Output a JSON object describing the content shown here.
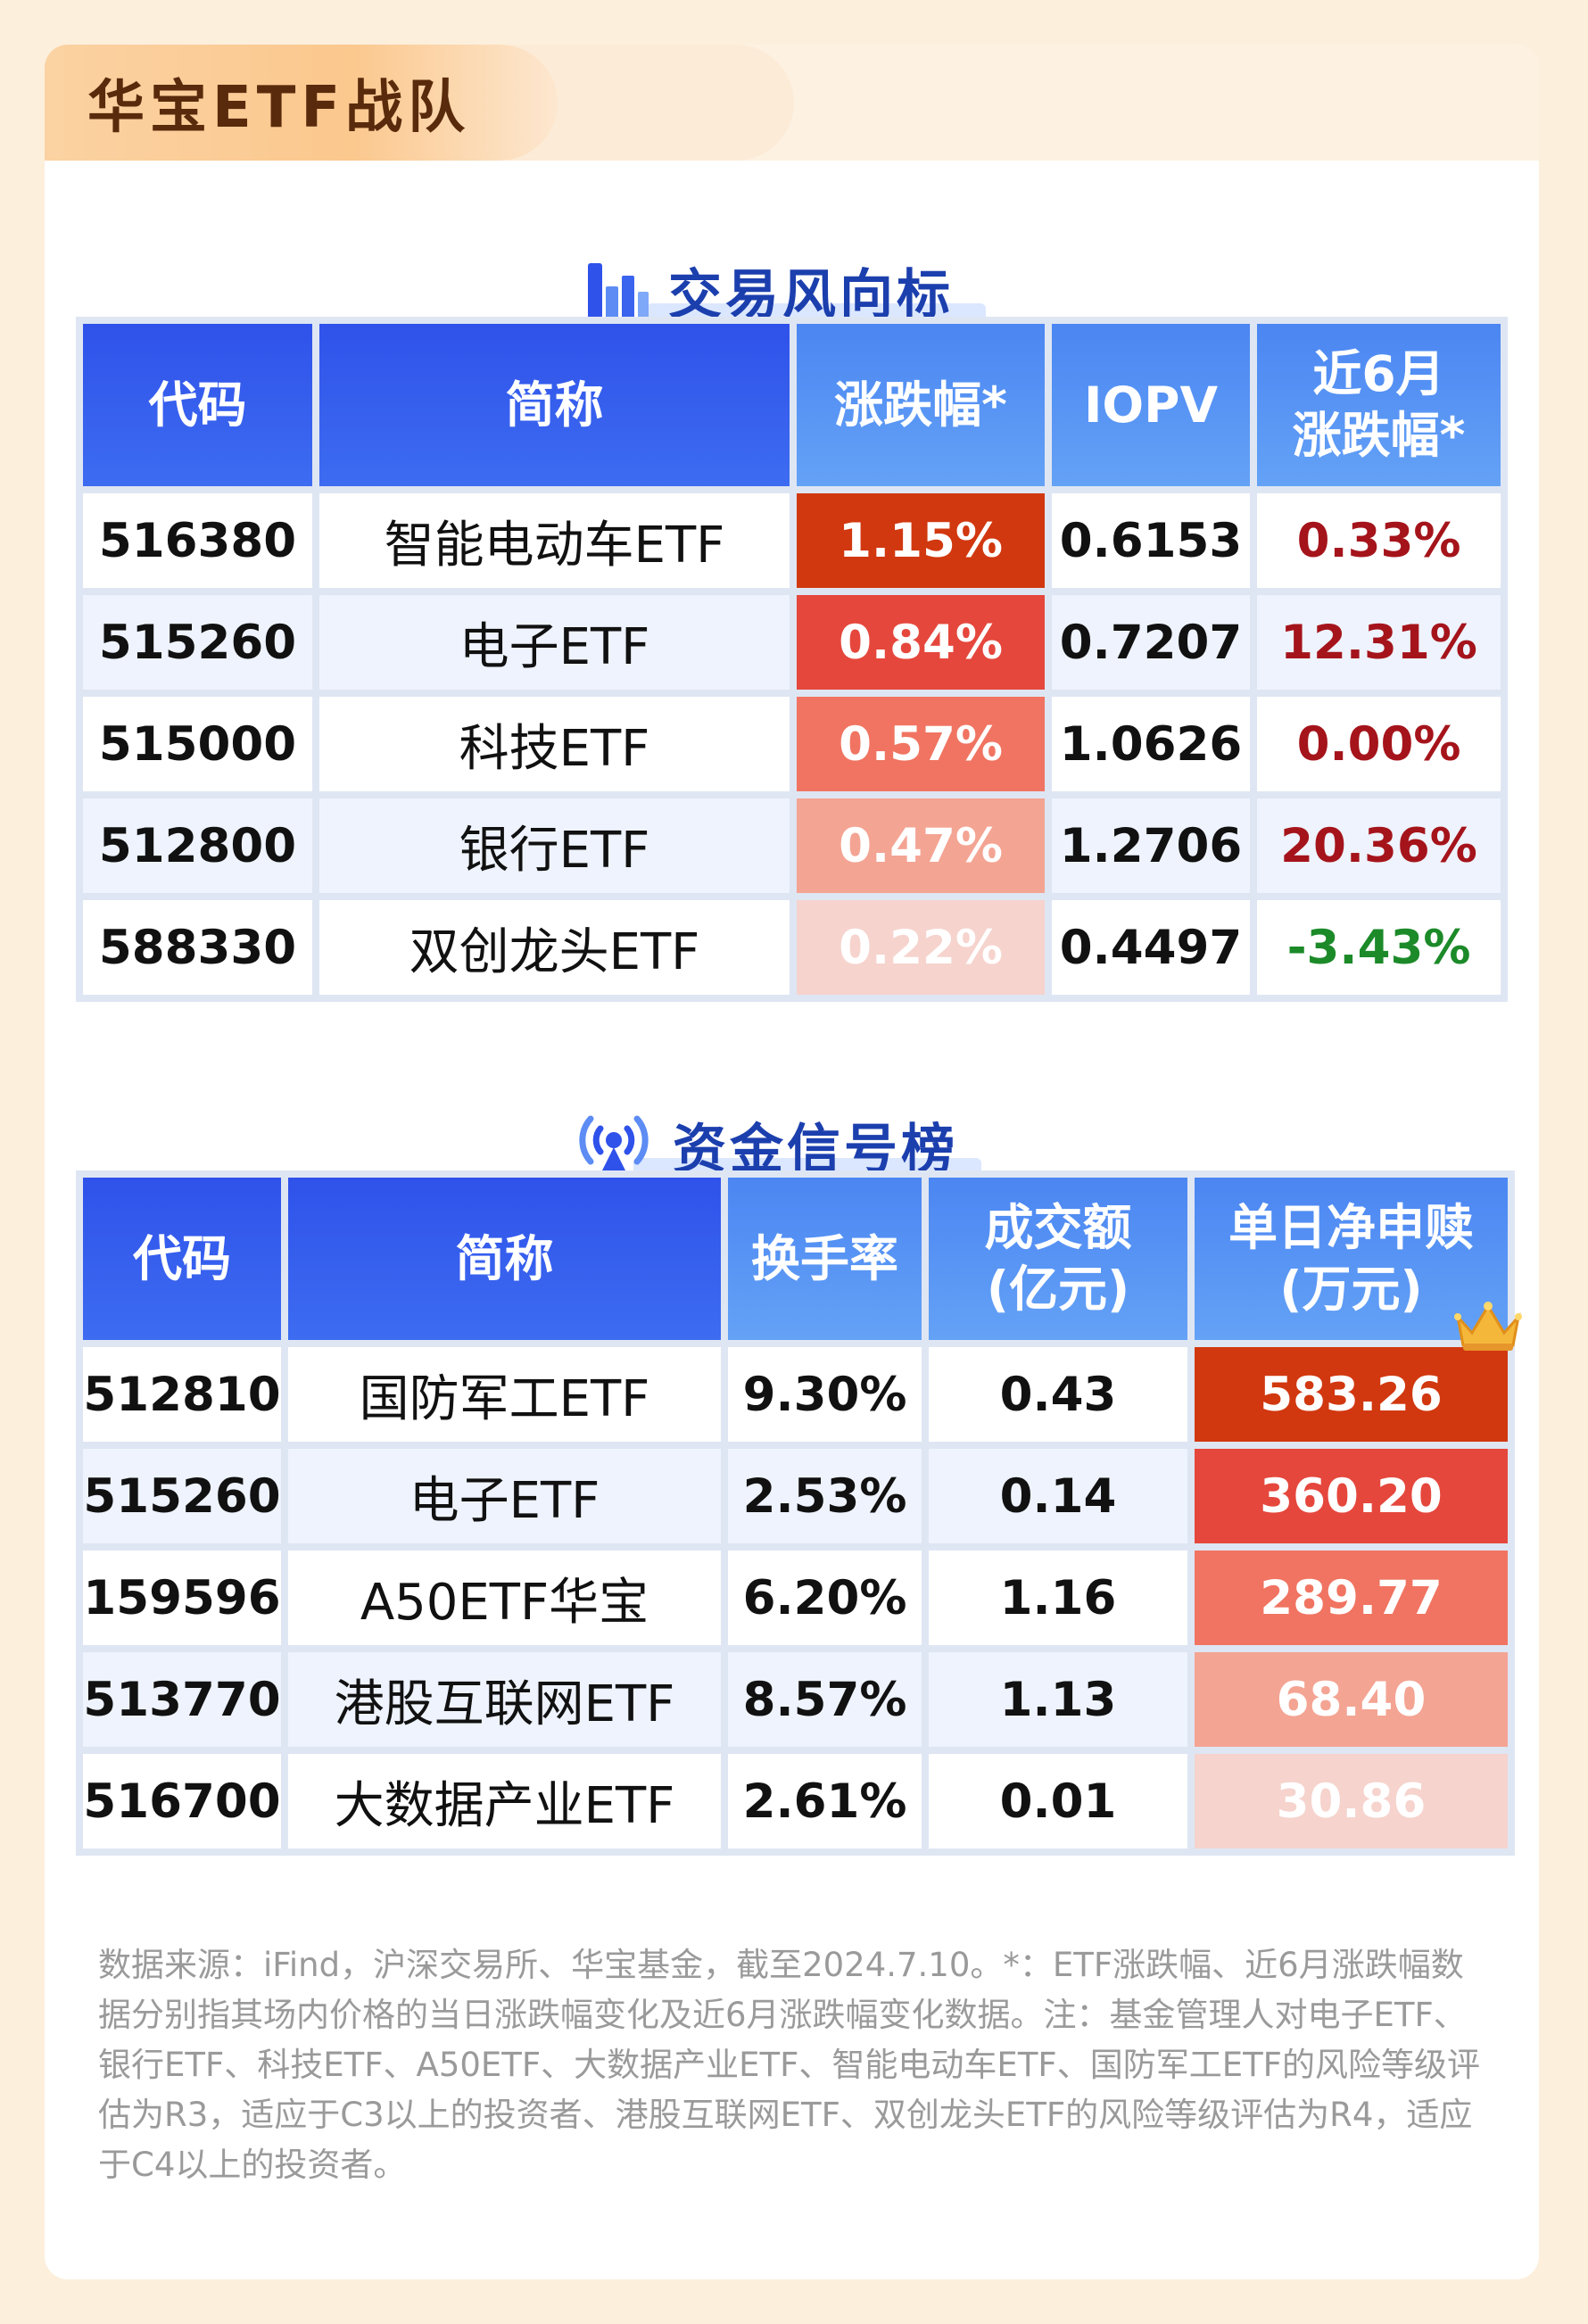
{
  "team_title": "华宝ETF战队",
  "trade": {
    "title": "交易风向标",
    "icon": "bar-chart-icon",
    "headers": [
      "代码",
      "简称",
      "涨跌幅*",
      "IOPV",
      "近6月\n涨跌幅*"
    ],
    "rows": [
      {
        "code": "516380",
        "name": "智能电动车ETF",
        "change": "1.15%",
        "iopv": "0.6153",
        "m6": "0.33%",
        "heat_color": "#d1380f",
        "m6_dir": "neg"
      },
      {
        "code": "515260",
        "name": "电子ETF",
        "change": "0.84%",
        "iopv": "0.7207",
        "m6": "12.31%",
        "heat_color": "#e5473c",
        "m6_dir": "neg"
      },
      {
        "code": "515000",
        "name": "科技ETF",
        "change": "0.57%",
        "iopv": "1.0626",
        "m6": "0.00%",
        "heat_color": "#f07461",
        "m6_dir": "neg"
      },
      {
        "code": "512800",
        "name": "银行ETF",
        "change": "0.47%",
        "iopv": "1.2706",
        "m6": "20.36%",
        "heat_color": "#f4a493",
        "m6_dir": "neg"
      },
      {
        "code": "588330",
        "name": "双创龙头ETF",
        "change": "0.22%",
        "iopv": "0.4497",
        "m6": "-3.43%",
        "heat_color": "#f6d3cd",
        "m6_dir": "pos"
      }
    ]
  },
  "fund": {
    "title": "资金信号榜",
    "icon": "broadcast-signal-icon",
    "headers": [
      "代码",
      "简称",
      "换手率",
      "成交额\n(亿元)",
      "单日净申赎\n(万元)"
    ],
    "rows": [
      {
        "code": "512810",
        "name": "国防军工ETF",
        "turnover": "9.30%",
        "volume": "0.43",
        "net": "583.26",
        "heat_color": "#d1380f"
      },
      {
        "code": "515260",
        "name": "电子ETF",
        "turnover": "2.53%",
        "volume": "0.14",
        "net": "360.20",
        "heat_color": "#e5473c"
      },
      {
        "code": "159596",
        "name": "A50ETF华宝",
        "turnover": "6.20%",
        "volume": "1.16",
        "net": "289.77",
        "heat_color": "#f07461"
      },
      {
        "code": "513770",
        "name": "港股互联网ETF",
        "turnover": "8.57%",
        "volume": "1.13",
        "net": "68.40",
        "heat_color": "#f4a493"
      },
      {
        "code": "516700",
        "name": "大数据产业ETF",
        "turnover": "2.61%",
        "volume": "0.01",
        "net": "30.86",
        "heat_color": "#f6d3cd"
      }
    ]
  },
  "footnote": "数据来源：iFind，沪深交易所、华宝基金，截至2024.7.10。*：ETF涨跌幅、近6月涨跌幅数据分别指其场内价格的当日涨跌幅变化及近6月涨跌幅变化数据。注：基金管理人对电子ETF、银行ETF、科技ETF、A50ETF、大数据产业ETF、智能电动车ETF、国防军工ETF的风险等级评估为R3，适应于C3以上的投资者、港股互联网ETF、双创龙头ETF的风险等级评估为R4，适应于C4以上的投资者。",
  "colors": {
    "header_blue": "#2f52ea",
    "title_blue": "#1c3fae",
    "neg_red": "#a5141b",
    "pos_green": "#1c8a29"
  }
}
